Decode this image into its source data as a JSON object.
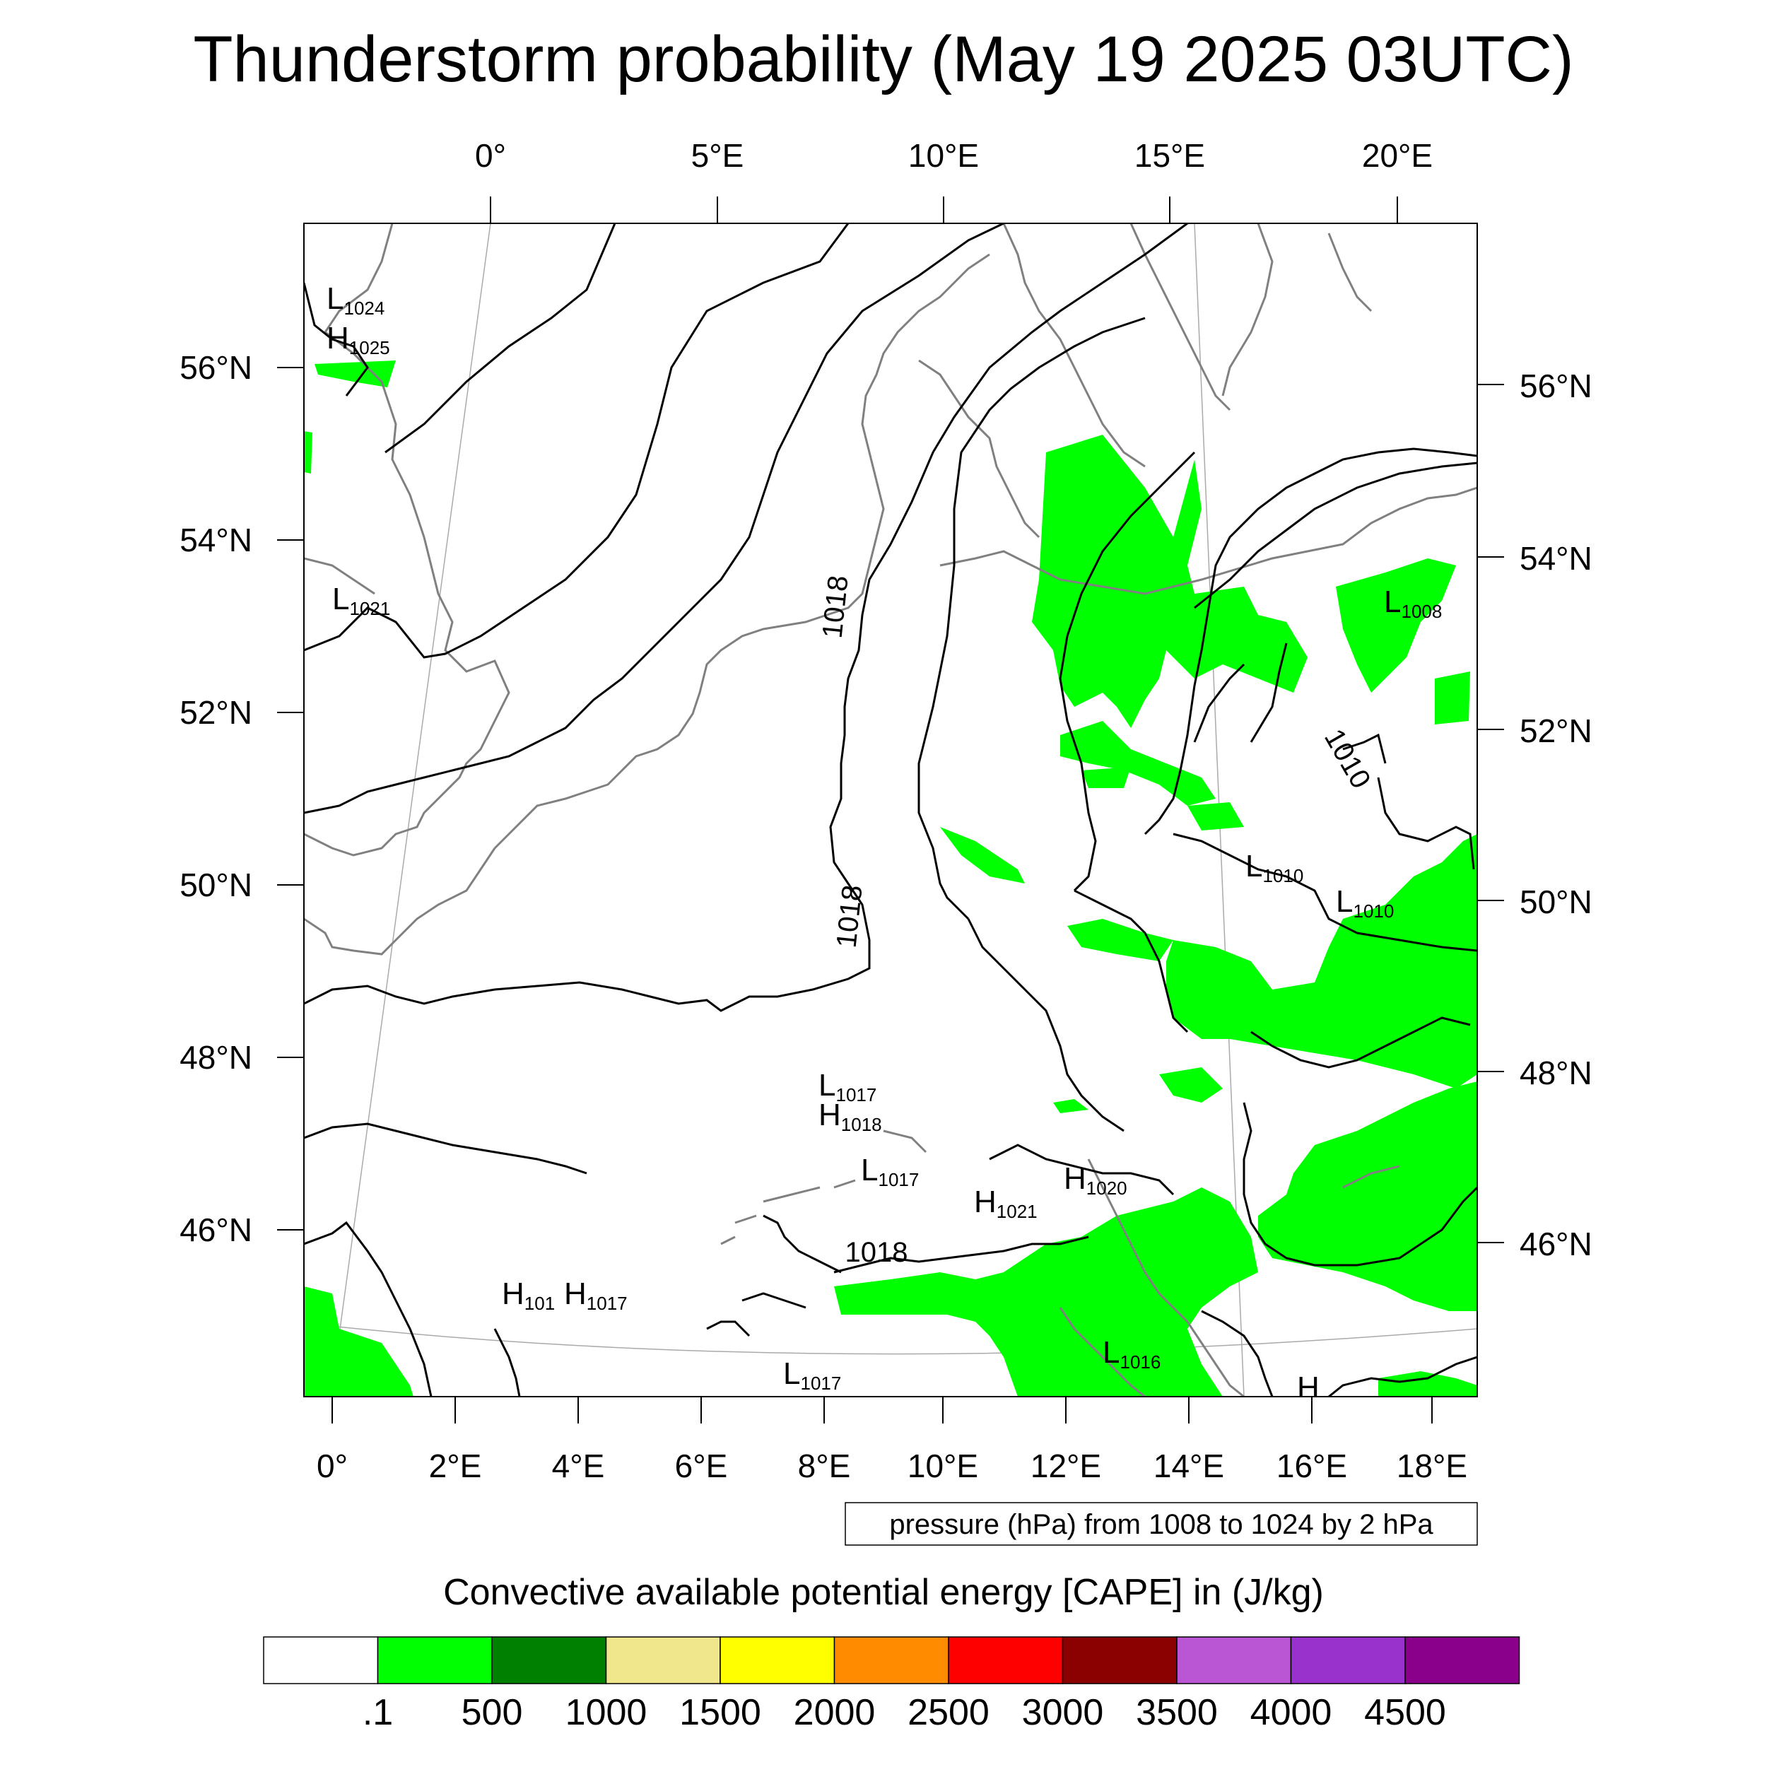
{
  "title": "Thunderstorm probability (May 19 2025 03UTC)",
  "top_lon_labels": [
    "0°",
    "5°E",
    "10°E",
    "15°E",
    "20°E"
  ],
  "bottom_lon_labels": [
    "0°",
    "2°E",
    "4°E",
    "6°E",
    "8°E",
    "10°E",
    "12°E",
    "14°E",
    "16°E",
    "18°E"
  ],
  "left_lat_labels": [
    "56°N",
    "54°N",
    "52°N",
    "50°N",
    "48°N",
    "46°N"
  ],
  "right_lat_labels": [
    "56°N",
    "54°N",
    "52°N",
    "50°N",
    "48°N",
    "46°N"
  ],
  "pressure_note": "pressure (hPa) from 1008 to 1024 by 2 hPa",
  "colorbar": {
    "title": "Convective available potential energy [CAPE] in (J/kg)",
    "colors": [
      "#ffffff",
      "#00ff00",
      "#008000",
      "#f0e68c",
      "#ffff00",
      "#ff8c00",
      "#ff0000",
      "#8b0000",
      "#ba55d3",
      "#9932cc",
      "#8b008b"
    ],
    "labels": [
      ".1",
      "500",
      "1000",
      "1500",
      "2000",
      "2500",
      "3000",
      "3500",
      "4000",
      "4500"
    ]
  },
  "colors": {
    "cape_low": "#00ff00",
    "isobar": "#000000",
    "coastline": "#808080",
    "gridline": "#aaaaaa"
  },
  "isobar_labels": [
    {
      "text": "1018",
      "kind": "contour"
    },
    {
      "text": "1018",
      "kind": "contour"
    },
    {
      "text": "1018",
      "kind": "contour"
    },
    {
      "text": "1010",
      "kind": "contour"
    }
  ],
  "pressure_centers": [
    {
      "type": "L",
      "value": "1024"
    },
    {
      "type": "H",
      "value": "1025"
    },
    {
      "type": "L",
      "value": "1021"
    },
    {
      "type": "L",
      "value": "1008"
    },
    {
      "type": "L",
      "value": "1010"
    },
    {
      "type": "L",
      "value": "1010"
    },
    {
      "type": "L",
      "value": "1017"
    },
    {
      "type": "H",
      "value": "1018"
    },
    {
      "type": "L",
      "value": "1017"
    },
    {
      "type": "H",
      "value": "1020"
    },
    {
      "type": "H",
      "value": "1021"
    },
    {
      "type": "H",
      "value": "101"
    },
    {
      "type": "H",
      "value": "1017"
    },
    {
      "type": "L",
      "value": "1016"
    },
    {
      "type": "L",
      "value": "1017"
    },
    {
      "type": "H",
      "value": ""
    }
  ]
}
